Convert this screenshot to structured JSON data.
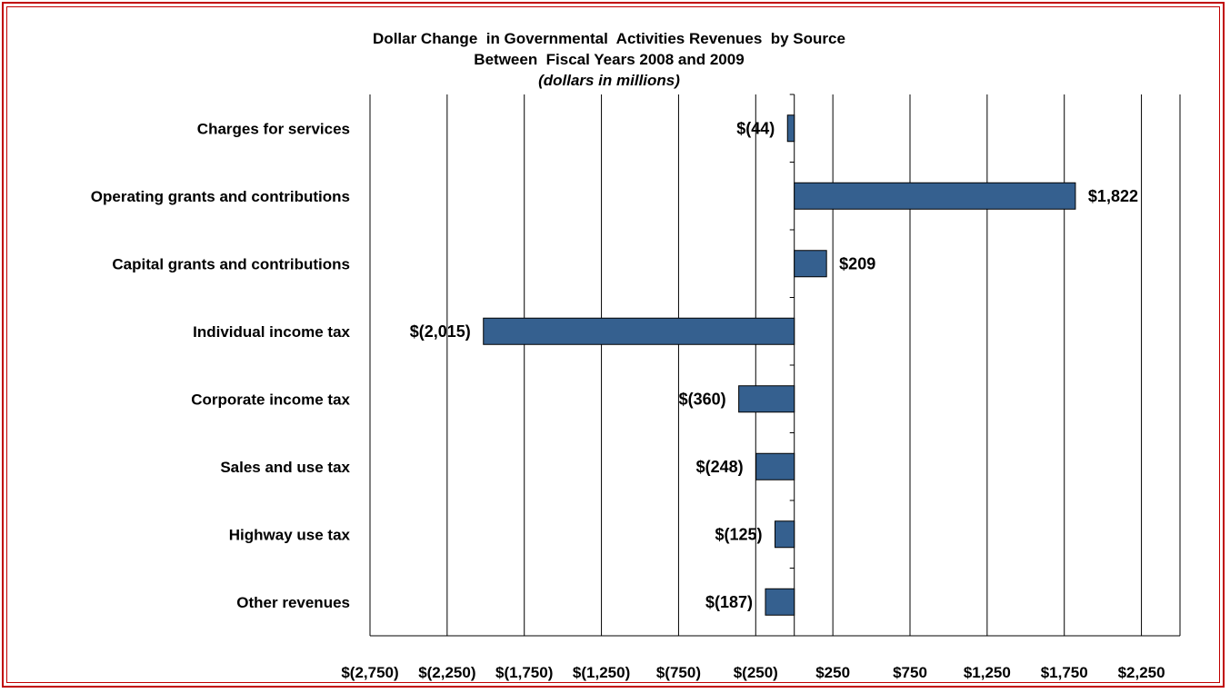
{
  "chart_data": {
    "type": "bar",
    "orientation": "horizontal",
    "title": "Dollar Change  in Governmental  Activities Revenues  by Source",
    "subtitle": "Between  Fiscal Years 2008 and 2009",
    "unit_note": "(dollars in millions)",
    "categories": [
      "Charges for services",
      "Operating grants and contributions",
      "Capital grants and contributions",
      "Individual income tax",
      "Corporate income tax",
      "Sales and use tax",
      "Highway use tax",
      "Other revenues"
    ],
    "values": [
      -44,
      1822,
      209,
      -2015,
      -360,
      -248,
      -125,
      -187
    ],
    "data_labels": [
      "$(44)",
      "$1,822",
      "$209",
      "$(2,015)",
      "$(360)",
      "$(248)",
      "$(125)",
      "$(187)"
    ],
    "xlim": [
      -2750,
      2500
    ],
    "xticks": [
      -2750,
      -2250,
      -1750,
      -1250,
      -750,
      -250,
      250,
      750,
      1250,
      1750,
      2250
    ],
    "xtick_labels": [
      "$(2,750)",
      "$(2,250)",
      "$(1,750)",
      "$(1,250)",
      "$(750)",
      "$(250)",
      "$250",
      "$750",
      "$1,250",
      "$1,750",
      "$2,250"
    ],
    "gridlines": true,
    "legend": "none",
    "colors": {
      "bar": "#35608f",
      "bar_edge": "#000000",
      "frame": "#c00000"
    }
  }
}
